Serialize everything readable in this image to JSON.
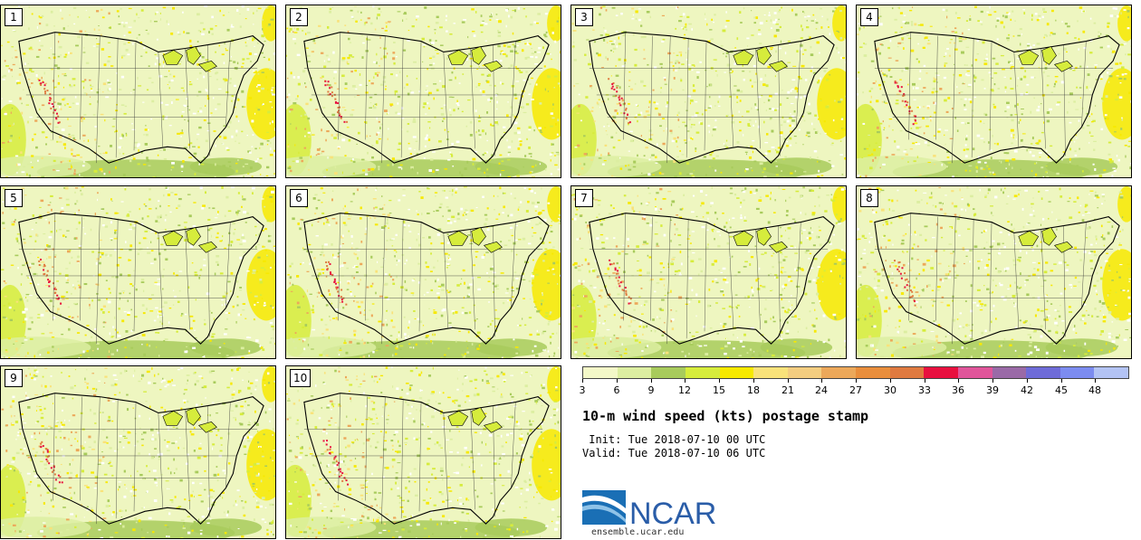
{
  "panels": [
    {
      "label": "1"
    },
    {
      "label": "2"
    },
    {
      "label": "3"
    },
    {
      "label": "4"
    },
    {
      "label": "5"
    },
    {
      "label": "6"
    },
    {
      "label": "7"
    },
    {
      "label": "8"
    },
    {
      "label": "9"
    },
    {
      "label": "10"
    }
  ],
  "colorbar": {
    "ticks": [
      "3",
      "6",
      "9",
      "12",
      "15",
      "18",
      "21",
      "24",
      "27",
      "30",
      "33",
      "36",
      "39",
      "42",
      "45",
      "48"
    ],
    "colors": [
      "#f3f8c8",
      "#dceea1",
      "#a8cb5c",
      "#d6ec3c",
      "#f7e900",
      "#f9e27a",
      "#f3cd80",
      "#eca85a",
      "#e98e3c",
      "#df7a40",
      "#e8103f",
      "#e0559a",
      "#9a6aa7",
      "#6e6bd8",
      "#7c8cf0",
      "#b3c3f4"
    ]
  },
  "title": "10-m wind speed (kts) postage stamp",
  "init": " Init: Tue 2018-07-10 00 UTC",
  "valid": "Valid: Tue 2018-07-10 06 UTC",
  "logo": {
    "text": "NCAR",
    "brand_color": "#2a5da8"
  },
  "website": "ensemble.ucar.edu"
}
